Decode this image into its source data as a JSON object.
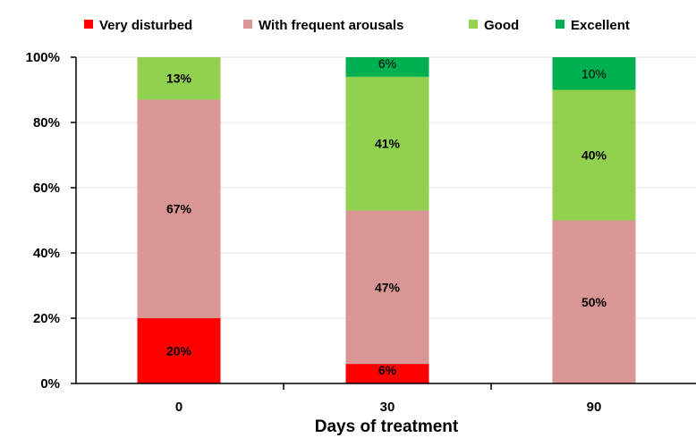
{
  "chart_data": {
    "type": "bar",
    "stacked": true,
    "title_visible_fragment": "...g...y...p",
    "xlabel": "Days of treatment",
    "ylabel": "",
    "categories": [
      "0",
      "30",
      "90"
    ],
    "ylim": [
      0,
      100
    ],
    "y_ticks": [
      "0%",
      "20%",
      "40%",
      "60%",
      "80%",
      "100%"
    ],
    "grid": true,
    "legend_position": "top",
    "series": [
      {
        "name": "Very disturbed",
        "color": "#ff0000",
        "values": [
          20,
          6,
          0
        ],
        "labels": [
          "20%",
          "6%",
          ""
        ]
      },
      {
        "name": "With frequent arousals",
        "color": "#da9694",
        "values": [
          67,
          47,
          50
        ],
        "labels": [
          "67%",
          "47%",
          "50%"
        ]
      },
      {
        "name": "Good",
        "color": "#92d050",
        "values": [
          13,
          41,
          40
        ],
        "labels": [
          "13%",
          "41%",
          "40%"
        ]
      },
      {
        "name": "Excellent",
        "color": "#00b050",
        "values": [
          0,
          6,
          10
        ],
        "labels": [
          "",
          "6%",
          "10%"
        ]
      }
    ]
  }
}
